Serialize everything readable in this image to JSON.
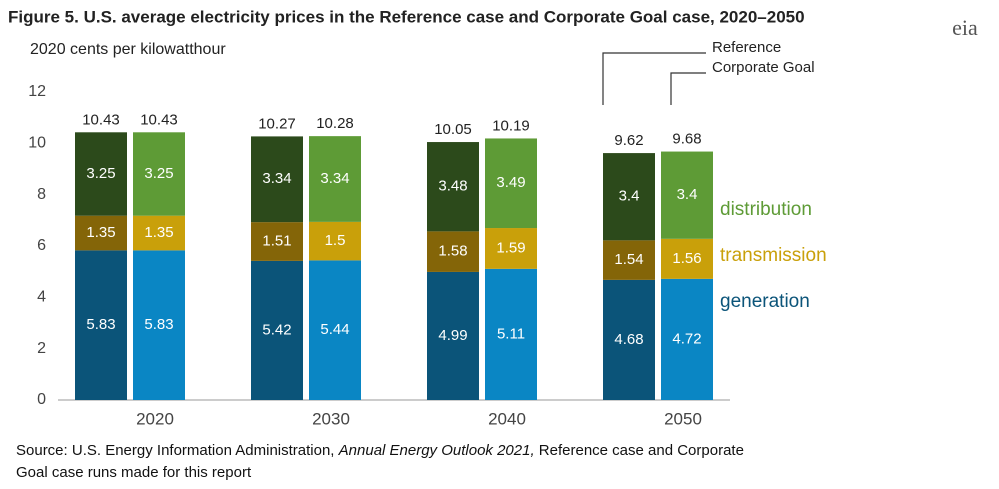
{
  "chart_data": {
    "type": "bar",
    "stacked": true,
    "title": "Figure 5. U.S. average electricity prices in the Reference case and Corporate Goal case, 2020–2050",
    "ylabel": "2020 cents per kilowatthour",
    "logo": "eia",
    "categories": [
      "2020",
      "2030",
      "2040",
      "2050"
    ],
    "groups": [
      "Reference",
      "Corporate Goal"
    ],
    "series": [
      {
        "name": "generation",
        "colors": [
          "#0b5479",
          "#0a86c4"
        ],
        "values": [
          [
            5.83,
            5.42,
            4.99,
            4.68
          ],
          [
            5.83,
            5.44,
            5.11,
            4.72
          ]
        ]
      },
      {
        "name": "transmission",
        "colors": [
          "#846508",
          "#c9a00a"
        ],
        "values": [
          [
            1.35,
            1.51,
            1.58,
            1.54
          ],
          [
            1.35,
            1.5,
            1.59,
            1.56
          ]
        ]
      },
      {
        "name": "distribution",
        "colors": [
          "#2c4a1b",
          "#5e9b36"
        ],
        "values": [
          [
            3.25,
            3.34,
            3.48,
            3.4
          ],
          [
            3.25,
            3.34,
            3.49,
            3.4
          ]
        ]
      }
    ],
    "totals": [
      [
        10.43,
        10.27,
        10.05,
        9.62
      ],
      [
        10.43,
        10.28,
        10.19,
        9.68
      ]
    ],
    "ylim": [
      0,
      12
    ],
    "yticks": [
      0,
      2,
      4,
      6,
      8,
      10,
      12
    ],
    "grid": false,
    "source": [
      "Source: U.S. Energy Information Administration, ",
      "Annual Energy Outlook 2021,",
      " Reference case and Corporate Goal case runs made for this report"
    ]
  }
}
